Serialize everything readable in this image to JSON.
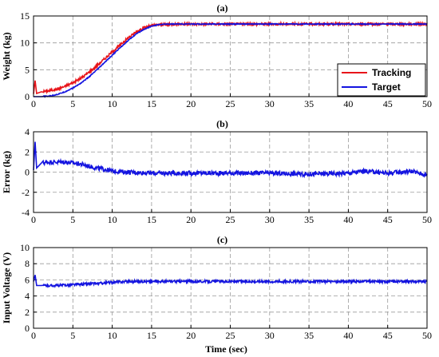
{
  "chart_data": [
    {
      "type": "line",
      "title": "(a)",
      "xlabel": "",
      "ylabel": "Weight (kg)",
      "xlim": [
        0,
        50
      ],
      "ylim": [
        0,
        15
      ],
      "xticks": [
        0,
        5,
        10,
        15,
        20,
        25,
        30,
        35,
        40,
        45,
        50
      ],
      "yticks": [
        0,
        5,
        10,
        15
      ],
      "grid": true,
      "legend": "bottom-right",
      "series": [
        {
          "name": "Tracking",
          "color": "#e8141a",
          "x": [
            0,
            0.2,
            0.4,
            1,
            2,
            3,
            4,
            5,
            6,
            7,
            8,
            9,
            10,
            11,
            12,
            13,
            14,
            15,
            16,
            17,
            18,
            19,
            20,
            25,
            30,
            35,
            40,
            45,
            50
          ],
          "y": [
            0.5,
            3.0,
            0.6,
            0.9,
            1.1,
            1.4,
            1.9,
            2.6,
            3.4,
            4.5,
            5.7,
            7.0,
            8.3,
            9.6,
            10.9,
            12.0,
            12.8,
            13.2,
            13.4,
            13.4,
            13.5,
            13.5,
            13.5,
            13.5,
            13.5,
            13.5,
            13.5,
            13.5,
            13.5
          ]
        },
        {
          "name": "Target",
          "color": "#1414e0",
          "x": [
            0,
            1,
            2,
            3,
            4,
            5,
            6,
            7,
            8,
            9,
            10,
            11,
            12,
            13,
            14,
            15,
            16,
            17,
            18,
            19,
            20,
            25,
            30,
            35,
            40,
            45,
            50
          ],
          "y": [
            0,
            0,
            0.1,
            0.4,
            0.9,
            1.6,
            2.5,
            3.6,
            4.9,
            6.3,
            7.7,
            9.1,
            10.4,
            11.6,
            12.5,
            13.1,
            13.4,
            13.5,
            13.5,
            13.5,
            13.5,
            13.5,
            13.5,
            13.5,
            13.5,
            13.5,
            13.5
          ]
        }
      ]
    },
    {
      "type": "line",
      "title": "(b)",
      "xlabel": "",
      "ylabel": "Error (kg)",
      "xlim": [
        0,
        50
      ],
      "ylim": [
        -4,
        4
      ],
      "xticks": [
        0,
        5,
        10,
        15,
        20,
        25,
        30,
        35,
        40,
        45,
        50
      ],
      "yticks": [
        -4,
        -2,
        0,
        2,
        4
      ],
      "grid": true,
      "series": [
        {
          "name": "",
          "color": "#1414e0",
          "x": [
            0,
            0.2,
            0.4,
            1,
            2,
            3,
            4,
            5,
            6,
            7,
            8,
            9,
            10,
            12,
            15,
            20,
            25,
            30,
            35,
            40,
            42,
            45,
            48,
            50
          ],
          "y": [
            0.2,
            3.0,
            0.4,
            0.9,
            1.0,
            1.0,
            1.0,
            0.9,
            0.8,
            0.6,
            0.4,
            0.3,
            0.1,
            0.0,
            -0.1,
            -0.1,
            -0.1,
            -0.1,
            -0.2,
            -0.1,
            0.1,
            -0.1,
            0.1,
            -0.3
          ]
        }
      ]
    },
    {
      "type": "line",
      "title": "(c)",
      "xlabel": "Time (sec)",
      "ylabel": "Input Voltage (V)",
      "xlim": [
        0,
        50
      ],
      "ylim": [
        0,
        10
      ],
      "xticks": [
        0,
        5,
        10,
        15,
        20,
        25,
        30,
        35,
        40,
        45,
        50
      ],
      "yticks": [
        0,
        2,
        4,
        6,
        8,
        10
      ],
      "grid": true,
      "series": [
        {
          "name": "",
          "color": "#1414e0",
          "x": [
            0,
            0.2,
            0.4,
            1,
            3,
            5,
            7,
            9,
            10,
            12,
            15,
            20,
            25,
            30,
            35,
            40,
            45,
            50
          ],
          "y": [
            5.8,
            6.6,
            5.3,
            5.3,
            5.3,
            5.4,
            5.5,
            5.6,
            5.7,
            5.8,
            5.8,
            5.8,
            5.8,
            5.8,
            5.8,
            5.8,
            5.8,
            5.8
          ]
        }
      ]
    }
  ]
}
